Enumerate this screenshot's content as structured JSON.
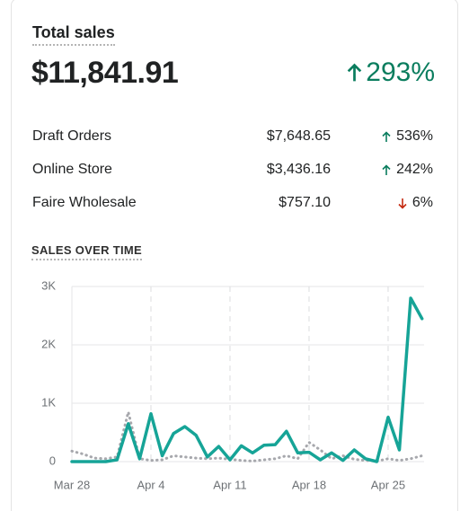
{
  "header": {
    "title": "Total sales",
    "total": "$11,841.91",
    "change": "293%",
    "trend": "up"
  },
  "breakdown": [
    {
      "name": "Draft Orders",
      "value": "$7,648.65",
      "change": "536%",
      "trend": "up"
    },
    {
      "name": "Online Store",
      "value": "$3,436.16",
      "change": "242%",
      "trend": "up"
    },
    {
      "name": "Faire Wholesale",
      "value": "$757.10",
      "change": "6%",
      "trend": "down"
    }
  ],
  "chart_data": {
    "type": "line",
    "title": "SALES OVER TIME",
    "categories": [
      "Mar 28",
      null,
      null,
      null,
      null,
      null,
      null,
      "Apr 4",
      null,
      null,
      null,
      null,
      null,
      null,
      "Apr 11",
      null,
      null,
      null,
      null,
      null,
      null,
      "Apr 18",
      null,
      null,
      null,
      null,
      null,
      null,
      "Apr 25",
      null,
      null,
      null
    ],
    "series": [
      {
        "color": "#a7a8ad",
        "style": "dotted",
        "values": [
          180,
          130,
          60,
          50,
          80,
          850,
          50,
          20,
          30,
          100,
          80,
          60,
          50,
          60,
          40,
          20,
          10,
          30,
          50,
          100,
          50,
          330,
          200,
          50,
          100,
          40,
          20,
          10,
          50,
          20,
          50,
          100
        ]
      },
      {
        "color": "#16a497",
        "style": "solid",
        "values": [
          0,
          0,
          0,
          0,
          30,
          650,
          50,
          820,
          100,
          480,
          600,
          450,
          80,
          260,
          30,
          270,
          150,
          280,
          290,
          520,
          150,
          160,
          30,
          150,
          20,
          200,
          50,
          0,
          760,
          200,
          2800,
          2450
        ]
      }
    ],
    "ylim": [
      0,
      3000
    ],
    "yticks": [
      0,
      {
        "value": 1000,
        "label": "1K"
      },
      {
        "value": 2000,
        "label": "2K"
      },
      {
        "value": 3000,
        "label": "3K"
      }
    ],
    "grid": true
  }
}
